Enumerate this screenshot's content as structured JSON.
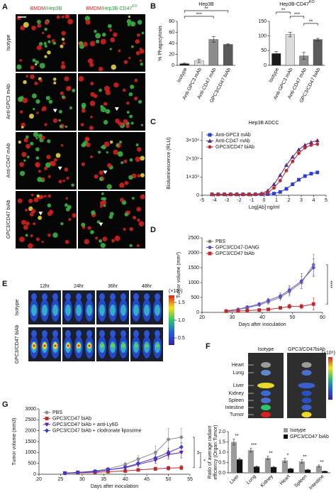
{
  "panel_labels": [
    "A",
    "B",
    "C",
    "D",
    "E",
    "F",
    "G"
  ],
  "panel_a": {
    "col_headers": [
      [
        "BMDM",
        "/Hep3B"
      ],
      [
        "BMDM",
        "/Hep3B-CD47",
        "KO"
      ]
    ],
    "row_labels": [
      "Isotype",
      "Anti-GPC3 mAb",
      "Anti-CD47 mAb",
      "GPC3/CD47 biAb"
    ]
  },
  "panel_e": {
    "times": [
      "12hr",
      "24hr",
      "36hr",
      "48hr"
    ],
    "row_labels": [
      "Isotype",
      "GPC3/CD47 biAb"
    ],
    "colorbar": {
      "unit": "(×10⁹)",
      "clim": [
        0.3,
        1.7
      ],
      "ticks": [
        1.5,
        {
          "value": 1,
          "label": "1.0"
        },
        0.5
      ]
    }
  },
  "panel_f": {
    "groups": [
      "Isotype",
      "GPC3/CD47biAb"
    ],
    "organs": [
      "Heart",
      "Lung",
      "Liver",
      "Kidney",
      "Spleen",
      "Intestine",
      "Tumor"
    ],
    "colorbar_unit": "(×10⁸)"
  },
  "chart_data": [
    {
      "type": "bar",
      "title": "Hep3B",
      "ylabel": "% Phagocytosis",
      "categories": [
        "Isotype",
        "Anti-GPC3 mAb",
        "Anti-CD47 mAb",
        "GPC3/CD47 biAb"
      ],
      "values": [
        3,
        8,
        47,
        38
      ],
      "errors": [
        1,
        3,
        5,
        1
      ],
      "colors": [
        "#1a1a1a",
        "#dcdcdc",
        "#8c8c8c",
        "#5a5a5a"
      ],
      "ylim": [
        0,
        80
      ],
      "yticks": [
        0,
        20,
        40,
        60,
        80
      ],
      "annotations": [
        "**",
        "***"
      ]
    },
    {
      "type": "bar",
      "title": "Hep3B-CD47",
      "title_sup": "KO",
      "categories": [
        "Isotype",
        "Anti-GPC3 mAb",
        "Anti-CD47 mAb",
        "GPC3/CD47 biAb"
      ],
      "values": [
        40,
        105,
        32,
        88
      ],
      "errors": [
        7,
        8,
        12,
        4
      ],
      "colors": [
        "#1a1a1a",
        "#dcdcdc",
        "#8c8c8c",
        "#5a5a5a"
      ],
      "ylim": [
        0,
        150
      ],
      "yticks": [
        0,
        50,
        100,
        150
      ],
      "annotations": [
        "**",
        "***",
        "**"
      ]
    },
    {
      "type": "line",
      "title": "Hep3B ADCC",
      "ylabel": "Bioluminescence (RLU)",
      "xlabel": "Log[Ab] ng/ml",
      "legend": "top-left",
      "x": [
        -4.2,
        -3.7,
        -3.2,
        -2.7,
        -2.2,
        -1.7,
        -1.2,
        -0.7,
        -0.2,
        0.3,
        0.8,
        1.3,
        1.8,
        2.3,
        2.8,
        3.3,
        3.8,
        4.3
      ],
      "series": [
        {
          "name": "Anti-GPC3 mAb",
          "color": "#2a3bd6",
          "marker": "square",
          "values": [
            500,
            500,
            500,
            500,
            500,
            500,
            500,
            500,
            500,
            600,
            900,
            1800,
            3500,
            6000,
            8500,
            10500,
            11800,
            12500
          ]
        },
        {
          "name": "Anti-CD47 mAb",
          "color": "#5b2a86",
          "marker": "triangle",
          "values": [
            500,
            500,
            500,
            500,
            500,
            500,
            500,
            600,
            1000,
            2500,
            6000,
            11000,
            16500,
            21000,
            25000,
            27500,
            29000,
            30000
          ]
        },
        {
          "name": "GPC3/CD47 biAb",
          "color": "#c0282d",
          "marker": "circle",
          "values": [
            500,
            500,
            500,
            500,
            500,
            500,
            500,
            500,
            700,
            1500,
            4000,
            8000,
            13500,
            18500,
            23000,
            26000,
            27500,
            28000
          ]
        }
      ],
      "xlim": [
        -5,
        5
      ],
      "xticks": [
        -5,
        -4,
        -3,
        -2,
        -1,
        0,
        1,
        2,
        3,
        4,
        5
      ],
      "ylim": [
        0,
        35000
      ],
      "yticks": [
        0,
        {
          "value": 10000,
          "label": "1×10⁴"
        },
        {
          "value": 20000,
          "label": "2×10⁴"
        },
        {
          "value": 30000,
          "label": "3×10⁴"
        }
      ]
    },
    {
      "type": "line",
      "ylabel": "Tumor volume (mm³)",
      "xlabel": "Days after inoculation",
      "legend": "top-left",
      "x": [
        28,
        32,
        35,
        39,
        42,
        46,
        49,
        53,
        57
      ],
      "series": [
        {
          "name": "PBS",
          "color": "#7f7f7f",
          "marker": "circle",
          "values": [
            50,
            100,
            150,
            250,
            350,
            500,
            700,
            1000,
            1600
          ],
          "errors": [
            10,
            20,
            30,
            50,
            80,
            100,
            150,
            200,
            350
          ]
        },
        {
          "name": "GPC3/CD47-DANG",
          "color": "#5a4fcf",
          "marker": "circle",
          "values": [
            50,
            100,
            180,
            280,
            400,
            550,
            750,
            1050,
            1500
          ],
          "errors": [
            10,
            20,
            30,
            50,
            70,
            100,
            150,
            250,
            300
          ]
        },
        {
          "name": "GPC3/CD47 biAb",
          "color": "#c0282d",
          "marker": "square",
          "values": [
            40,
            50,
            60,
            80,
            100,
            150,
            200,
            200,
            280
          ],
          "errors": [
            10,
            10,
            15,
            20,
            30,
            50,
            80,
            80,
            200
          ]
        }
      ],
      "xlim": [
        20,
        60
      ],
      "xticks": [
        20,
        30,
        40,
        50,
        60
      ],
      "ylim": [
        0,
        2500
      ],
      "yticks": [
        0,
        500,
        1000,
        1500,
        2000,
        2500
      ],
      "annotations": [
        "****"
      ]
    },
    {
      "type": "grouped-bar",
      "ylabel": [
        "Ratio of average radiant",
        "efficiency (Organ:Tumor)"
      ],
      "categories": [
        "Liver",
        "Lung",
        "Kidney",
        "Heart",
        "Spleen",
        "Intestine"
      ],
      "series": [
        {
          "name": "Isotype",
          "color": "#9a9a9a",
          "values": [
            1.5,
            1.1,
            0.72,
            0.6,
            0.55,
            0.33
          ],
          "errors": [
            0.15,
            0.1,
            0.08,
            0.1,
            0.08,
            0.05
          ]
        },
        {
          "name": "GPC3/CD47 biAb",
          "color": "#111111",
          "values": [
            0.65,
            0.3,
            0.28,
            0.2,
            0.15,
            0.08
          ],
          "errors": [
            0.06,
            0.03,
            0.03,
            0.02,
            0.02,
            0.01
          ]
        }
      ],
      "ylim": [
        0,
        2
      ],
      "yticks": [
        {
          "value": 0,
          "label": "0.0"
        },
        0.5,
        {
          "value": 1,
          "label": "1.0"
        },
        1.5,
        {
          "value": 2,
          "label": "2.0"
        }
      ],
      "annotations": [
        "**",
        "***",
        "**",
        "*",
        "**",
        "**"
      ]
    },
    {
      "type": "line",
      "ylabel": "Tumor volume (mm3)",
      "xlabel": "Days after inoculation",
      "legend": "top-left",
      "x": [
        26,
        29,
        33,
        36,
        40,
        43,
        47,
        50,
        53
      ],
      "series": [
        {
          "name": "PBS",
          "color": "#8c8c8c",
          "marker": "circle",
          "values": [
            50,
            80,
            150,
            250,
            450,
            700,
            1000,
            1600,
            1700
          ],
          "errors": [
            10,
            20,
            40,
            60,
            100,
            150,
            300,
            500,
            400
          ]
        },
        {
          "name": "GPC3/CD47 biAb",
          "color": "#c0282d",
          "marker": "square",
          "values": [
            50,
            60,
            80,
            120,
            150,
            200,
            250,
            280,
            300
          ],
          "errors": [
            10,
            10,
            20,
            30,
            40,
            60,
            80,
            90,
            100
          ]
        },
        {
          "name": "GPC3/CD47 biAb + anti-Ly6G",
          "color": "#6a1b9a",
          "marker": "triangle-down",
          "values": [
            50,
            80,
            120,
            200,
            300,
            450,
            650,
            900,
            1000
          ],
          "errors": [
            10,
            15,
            20,
            40,
            60,
            100,
            150,
            200,
            250
          ]
        },
        {
          "name": "GPC3/CD47 biAb + clodronate liposome",
          "color": "#3b3bd6",
          "marker": "diamond",
          "values": [
            50,
            80,
            130,
            200,
            320,
            500,
            750,
            1000,
            1250
          ],
          "errors": [
            10,
            15,
            25,
            40,
            60,
            100,
            150,
            200,
            200
          ]
        }
      ],
      "xlim": [
        20,
        55
      ],
      "xticks": [
        20,
        25,
        30,
        35,
        40,
        45,
        50,
        55
      ],
      "ylim": [
        0,
        3000
      ],
      "yticks": [
        0,
        500,
        1000,
        1500,
        2000,
        2500,
        3000
      ],
      "annotations": [
        "**",
        "*"
      ]
    }
  ]
}
